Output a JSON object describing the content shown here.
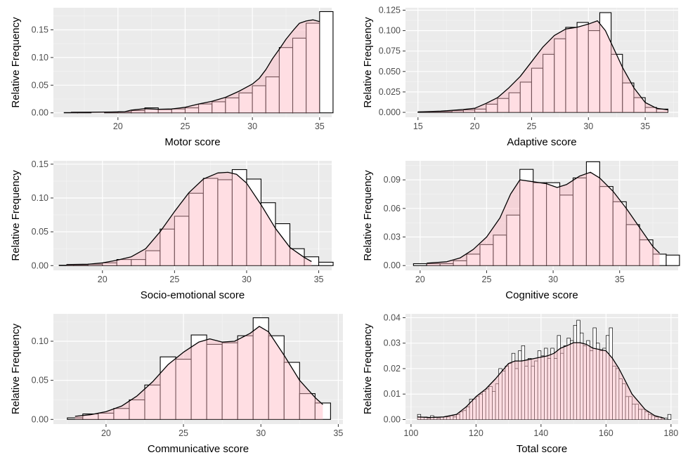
{
  "chart_data": [
    {
      "type": "bar",
      "xlabel": "Motor score",
      "ylabel": "Relative Frequency",
      "xlim": [
        15.2,
        35.9
      ],
      "ylim": [
        -0.008,
        0.19
      ],
      "xticks": [
        20,
        25,
        30,
        35
      ],
      "yticks": [
        0.0,
        0.05,
        0.1,
        0.15
      ],
      "ytick_labels": [
        "0.00",
        "0.05",
        "0.10",
        "0.15"
      ],
      "bin_width": 1,
      "bin_starts": [
        16,
        17,
        18,
        19,
        20,
        21,
        22,
        23,
        24,
        25,
        26,
        27,
        28,
        29,
        30,
        31,
        32,
        33,
        34,
        35
      ],
      "values": [
        0.0005,
        0.0005,
        0.0,
        0.0005,
        0.002,
        0.004,
        0.009,
        0.006,
        0.007,
        0.009,
        0.016,
        0.02,
        0.027,
        0.036,
        0.049,
        0.065,
        0.118,
        0.135,
        0.162,
        0.183
      ],
      "density": [
        [
          16.5,
          0.001
        ],
        [
          18,
          0.0012
        ],
        [
          19.5,
          0.0015
        ],
        [
          20.5,
          0.002
        ],
        [
          21,
          0.005
        ],
        [
          22,
          0.0075
        ],
        [
          23,
          0.0065
        ],
        [
          24,
          0.007
        ],
        [
          25,
          0.01
        ],
        [
          26,
          0.016
        ],
        [
          27,
          0.021
        ],
        [
          28,
          0.028
        ],
        [
          29,
          0.039
        ],
        [
          30,
          0.052
        ],
        [
          30.5,
          0.062
        ],
        [
          31,
          0.078
        ],
        [
          31.5,
          0.098
        ],
        [
          32,
          0.115
        ],
        [
          32.5,
          0.133
        ],
        [
          33,
          0.148
        ],
        [
          33.5,
          0.162
        ],
        [
          34,
          0.166
        ],
        [
          34.5,
          0.168
        ],
        [
          35,
          0.165
        ]
      ]
    },
    {
      "type": "bar",
      "xlabel": "Adaptive score",
      "ylabel": "Relative Frequency",
      "xlim": [
        13.9,
        37.9
      ],
      "ylim": [
        -0.006,
        0.128
      ],
      "xticks": [
        15,
        20,
        25,
        30,
        35
      ],
      "yticks": [
        0.0,
        0.025,
        0.05,
        0.075,
        0.1,
        0.125
      ],
      "ytick_labels": [
        "0.000",
        "0.025",
        "0.050",
        "0.075",
        "0.100",
        "0.125"
      ],
      "bin_width": 1,
      "bin_starts": [
        15,
        16,
        17,
        18,
        19,
        20,
        21,
        22,
        23,
        24,
        25,
        26,
        27,
        28,
        29,
        30,
        31,
        32,
        33,
        34,
        35,
        36
      ],
      "values": [
        0.0005,
        0.0005,
        0.001,
        0.002,
        0.003,
        0.004,
        0.01,
        0.017,
        0.024,
        0.037,
        0.054,
        0.071,
        0.09,
        0.104,
        0.11,
        0.1,
        0.122,
        0.071,
        0.036,
        0.018,
        0.006,
        0.004
      ],
      "density": [
        [
          15,
          0.0005
        ],
        [
          17,
          0.0015
        ],
        [
          19,
          0.0035
        ],
        [
          20,
          0.005
        ],
        [
          21,
          0.011
        ],
        [
          22,
          0.018
        ],
        [
          23,
          0.03
        ],
        [
          24,
          0.044
        ],
        [
          25,
          0.062
        ],
        [
          26,
          0.08
        ],
        [
          27,
          0.094
        ],
        [
          28,
          0.102
        ],
        [
          29,
          0.104
        ],
        [
          30,
          0.108
        ],
        [
          30.8,
          0.112
        ],
        [
          31.5,
          0.1
        ],
        [
          32,
          0.085
        ],
        [
          32.5,
          0.07
        ],
        [
          33,
          0.055
        ],
        [
          34,
          0.03
        ],
        [
          35,
          0.012
        ],
        [
          36,
          0.005
        ],
        [
          37,
          0.003
        ]
      ]
    },
    {
      "type": "bar",
      "xlabel": "Socio-emotional score",
      "ylabel": "Relative Frequency",
      "xlim": [
        16.6,
        35.9
      ],
      "ylim": [
        -0.007,
        0.155
      ],
      "xticks": [
        20,
        25,
        30,
        35
      ],
      "yticks": [
        0.0,
        0.05,
        0.1,
        0.15
      ],
      "ytick_labels": [
        "0.00",
        "0.05",
        "0.10",
        "0.15"
      ],
      "bin_width": 1,
      "bin_starts": [
        17,
        18,
        19,
        20,
        21,
        22,
        23,
        24,
        25,
        26,
        27,
        28,
        29,
        30,
        31,
        32,
        33,
        34,
        35
      ],
      "values": [
        0.0005,
        0.001,
        0.002,
        0.004,
        0.009,
        0.009,
        0.022,
        0.054,
        0.073,
        0.107,
        0.129,
        0.127,
        0.142,
        0.128,
        0.093,
        0.062,
        0.025,
        0.013,
        0.005
      ],
      "density": [
        [
          17.5,
          0.0015
        ],
        [
          19,
          0.002
        ],
        [
          20,
          0.004
        ],
        [
          21,
          0.008
        ],
        [
          22,
          0.013
        ],
        [
          23,
          0.025
        ],
        [
          24,
          0.05
        ],
        [
          25,
          0.08
        ],
        [
          26,
          0.108
        ],
        [
          27,
          0.128
        ],
        [
          28,
          0.137
        ],
        [
          28.7,
          0.138
        ],
        [
          29.3,
          0.135
        ],
        [
          30,
          0.122
        ],
        [
          31,
          0.09
        ],
        [
          32,
          0.055
        ],
        [
          33,
          0.027
        ],
        [
          34,
          0.012
        ],
        [
          34.5,
          0.006
        ]
      ]
    },
    {
      "type": "bar",
      "xlabel": "Cognitive score",
      "ylabel": "Relative Frequency",
      "xlim": [
        18.9,
        39.4
      ],
      "ylim": [
        -0.005,
        0.11
      ],
      "xticks": [
        20,
        25,
        30,
        35
      ],
      "yticks": [
        0.0,
        0.03,
        0.06,
        0.09
      ],
      "ytick_labels": [
        "0.00",
        "0.03",
        "0.06",
        "0.09"
      ],
      "bin_width": 1,
      "bin_starts": [
        19.5,
        20.5,
        21.5,
        22.5,
        23.5,
        24.5,
        25.5,
        26.5,
        27.5,
        28.5,
        29.5,
        30.5,
        31.5,
        32.5,
        33.5,
        34.5,
        35.5,
        36.5,
        37.5,
        38.5
      ],
      "values": [
        0.002,
        0.002,
        0.002,
        0.005,
        0.012,
        0.022,
        0.032,
        0.053,
        0.101,
        0.087,
        0.087,
        0.074,
        0.092,
        0.109,
        0.083,
        0.067,
        0.043,
        0.027,
        0.012,
        0.011
      ],
      "density": [
        [
          20.5,
          0.0025
        ],
        [
          22,
          0.004
        ],
        [
          23,
          0.008
        ],
        [
          24,
          0.017
        ],
        [
          25,
          0.03
        ],
        [
          26,
          0.05
        ],
        [
          26.8,
          0.075
        ],
        [
          27.5,
          0.09
        ],
        [
          28.5,
          0.088
        ],
        [
          29.5,
          0.086
        ],
        [
          30.3,
          0.082
        ],
        [
          31,
          0.085
        ],
        [
          32,
          0.094
        ],
        [
          32.8,
          0.098
        ],
        [
          33.5,
          0.092
        ],
        [
          34.5,
          0.078
        ],
        [
          35.5,
          0.06
        ],
        [
          36.5,
          0.04
        ],
        [
          37.5,
          0.02
        ],
        [
          38,
          0.013
        ]
      ]
    },
    {
      "type": "bar",
      "xlabel": "Communicative score",
      "ylabel": "Relative Frequency",
      "xlim": [
        16.6,
        35.3
      ],
      "ylim": [
        -0.006,
        0.135
      ],
      "xticks": [
        20,
        25,
        30,
        35
      ],
      "yticks": [
        0.0,
        0.05,
        0.1
      ],
      "ytick_labels": [
        "0.00",
        "0.05",
        "0.10"
      ],
      "bin_width": 1,
      "bin_starts": [
        17.5,
        18.5,
        19.5,
        20.5,
        21.5,
        22.5,
        23.5,
        24.5,
        25.5,
        26.5,
        27.5,
        28.5,
        29.5,
        30.5,
        31.5,
        32.5,
        33.5
      ],
      "values": [
        0.002,
        0.007,
        0.008,
        0.014,
        0.025,
        0.044,
        0.08,
        0.077,
        0.108,
        0.096,
        0.098,
        0.107,
        0.13,
        0.107,
        0.073,
        0.033,
        0.021
      ],
      "density": [
        [
          18,
          0.004
        ],
        [
          19,
          0.006
        ],
        [
          20,
          0.01
        ],
        [
          21,
          0.017
        ],
        [
          22,
          0.03
        ],
        [
          23,
          0.048
        ],
        [
          24,
          0.07
        ],
        [
          25,
          0.086
        ],
        [
          26,
          0.099
        ],
        [
          26.7,
          0.103
        ],
        [
          27.5,
          0.099
        ],
        [
          28.3,
          0.1
        ],
        [
          29.3,
          0.11
        ],
        [
          29.9,
          0.119
        ],
        [
          30.5,
          0.112
        ],
        [
          31.5,
          0.082
        ],
        [
          32.5,
          0.05
        ],
        [
          33.5,
          0.028
        ],
        [
          34,
          0.019
        ]
      ]
    },
    {
      "type": "bar",
      "xlabel": "Total score",
      "ylabel": "Relative Frequency",
      "xlim": [
        98.3,
        182.2
      ],
      "ylim": [
        -0.0018,
        0.0415
      ],
      "xticks": [
        100,
        120,
        140,
        160,
        180
      ],
      "yticks": [
        0.0,
        0.01,
        0.02,
        0.03,
        0.04
      ],
      "ytick_labels": [
        "0.00",
        "0.01",
        "0.02",
        "0.03",
        "0.04"
      ],
      "bin_width": 1,
      "bin_starts": [
        102,
        103,
        104,
        105,
        106,
        107,
        108,
        109,
        110,
        111,
        112,
        113,
        114,
        115,
        116,
        117,
        118,
        119,
        120,
        121,
        122,
        123,
        124,
        125,
        126,
        127,
        128,
        129,
        130,
        131,
        132,
        133,
        134,
        135,
        136,
        137,
        138,
        139,
        140,
        141,
        142,
        143,
        144,
        145,
        146,
        147,
        148,
        149,
        150,
        151,
        152,
        153,
        154,
        155,
        156,
        157,
        158,
        159,
        160,
        161,
        162,
        163,
        164,
        165,
        166,
        167,
        168,
        169,
        170,
        171,
        172,
        173,
        174,
        175,
        176,
        177,
        178,
        179
      ],
      "values": [
        0.002,
        0.001,
        0.001,
        0.0005,
        0.0015,
        0.001,
        0.0005,
        0.001,
        0.001,
        0.001,
        0.0015,
        0.001,
        0.002,
        0.003,
        0.0035,
        0.005,
        0.008,
        0.008,
        0.009,
        0.01,
        0.011,
        0.012,
        0.013,
        0.011,
        0.014,
        0.02,
        0.019,
        0.021,
        0.022,
        0.026,
        0.02,
        0.027,
        0.029,
        0.021,
        0.024,
        0.021,
        0.023,
        0.027,
        0.025,
        0.028,
        0.024,
        0.028,
        0.024,
        0.033,
        0.026,
        0.029,
        0.032,
        0.031,
        0.037,
        0.039,
        0.034,
        0.029,
        0.031,
        0.027,
        0.036,
        0.03,
        0.027,
        0.028,
        0.033,
        0.036,
        0.021,
        0.02,
        0.016,
        0.014,
        0.009,
        0.009,
        0.006,
        0.006,
        0.004,
        0.004,
        0.003,
        0.002,
        0.0015,
        0.001,
        0.001,
        0.0005,
        0.0005,
        0.002
      ],
      "density": [
        [
          102,
          0.001
        ],
        [
          106,
          0.0008
        ],
        [
          110,
          0.001
        ],
        [
          114,
          0.002
        ],
        [
          117,
          0.005
        ],
        [
          120,
          0.009
        ],
        [
          123,
          0.012
        ],
        [
          126,
          0.016
        ],
        [
          128,
          0.019
        ],
        [
          130,
          0.022
        ],
        [
          132,
          0.023
        ],
        [
          134,
          0.023
        ],
        [
          136,
          0.0235
        ],
        [
          138,
          0.024
        ],
        [
          140,
          0.0245
        ],
        [
          142,
          0.025
        ],
        [
          144,
          0.026
        ],
        [
          146,
          0.028
        ],
        [
          148,
          0.029
        ],
        [
          150,
          0.0302
        ],
        [
          152,
          0.0302
        ],
        [
          154,
          0.0295
        ],
        [
          156,
          0.028
        ],
        [
          158,
          0.0275
        ],
        [
          160,
          0.027
        ],
        [
          162,
          0.024
        ],
        [
          164,
          0.02
        ],
        [
          166,
          0.015
        ],
        [
          168,
          0.01
        ],
        [
          170,
          0.007
        ],
        [
          172,
          0.004
        ],
        [
          175,
          0.0015
        ],
        [
          178,
          0.0005
        ]
      ]
    }
  ]
}
